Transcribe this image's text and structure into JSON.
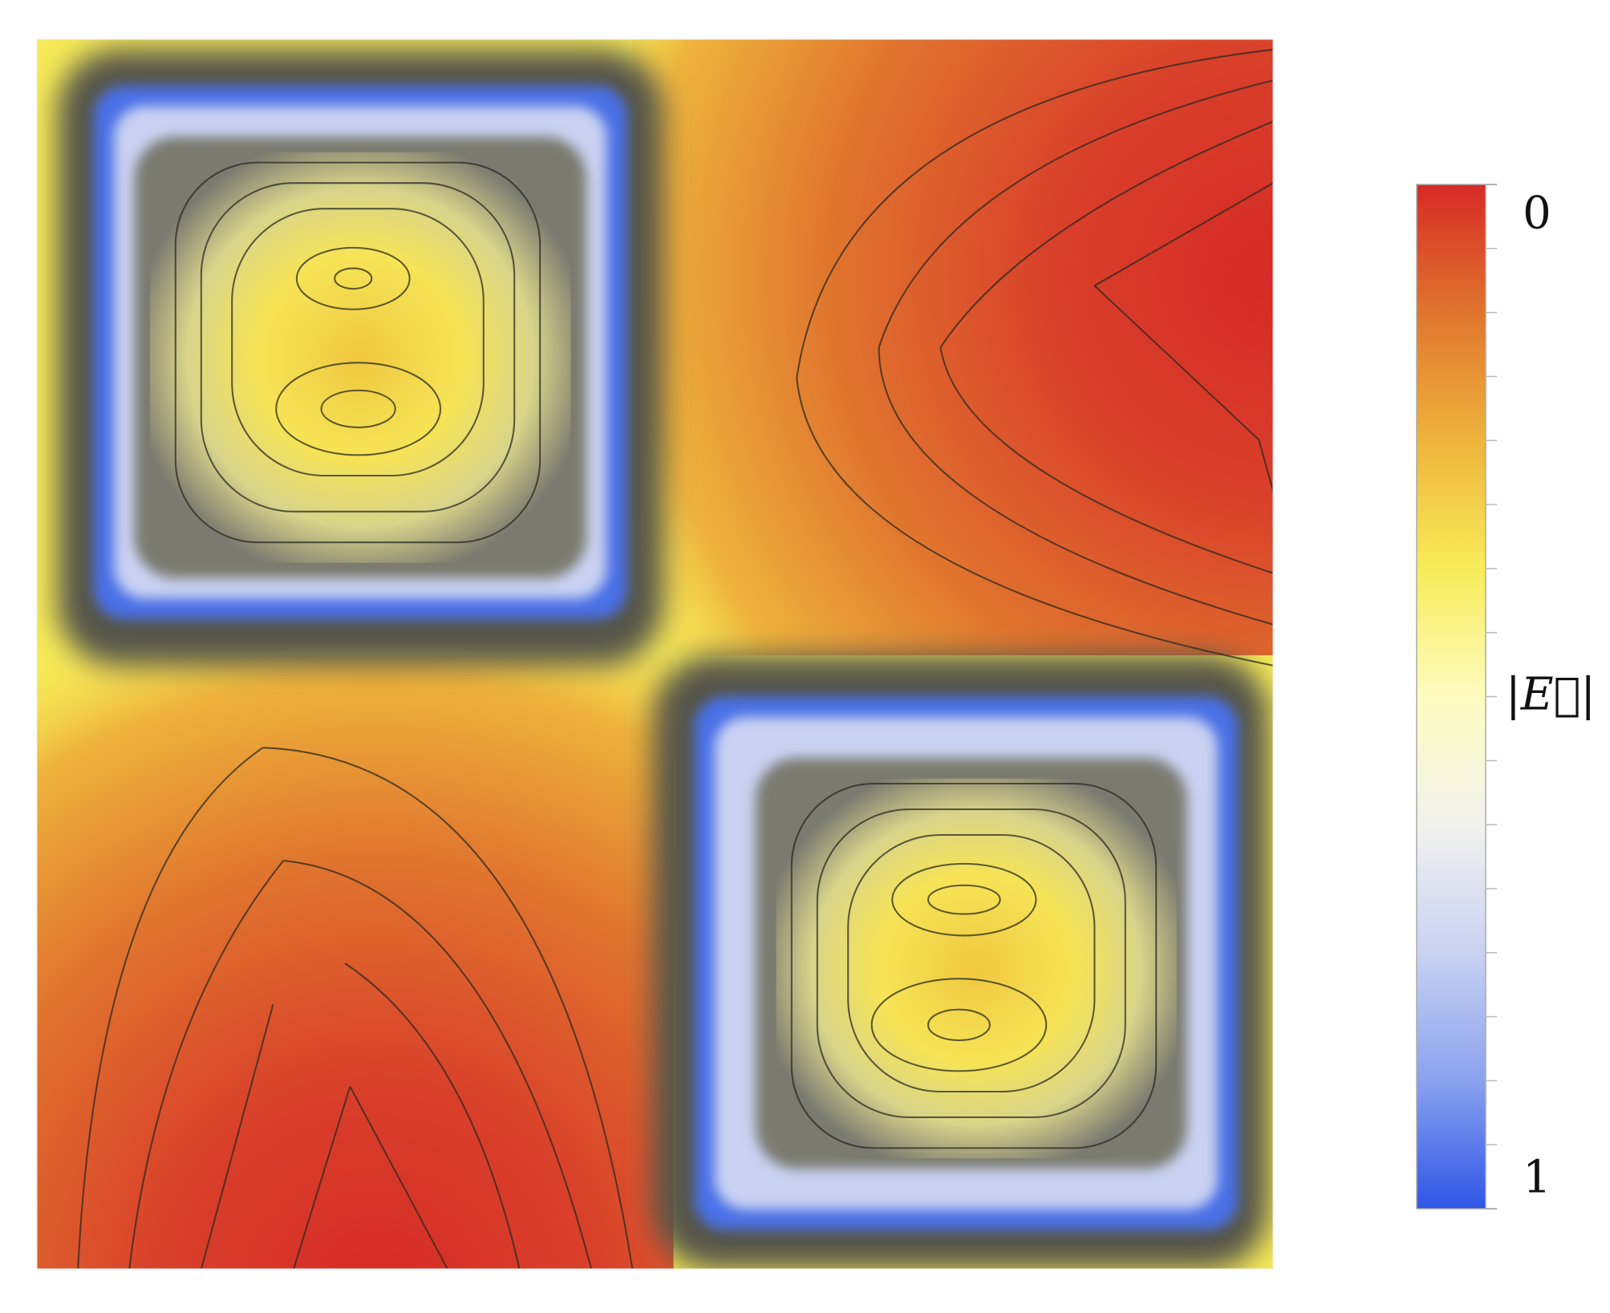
{
  "chart_data": {
    "type": "contour",
    "colorbar": {
      "label": "|E⃗|",
      "clim": [
        0,
        1
      ],
      "ticks": [
        0,
        1
      ],
      "reversed": true,
      "colormap": [
        "#d62a26",
        "#e0752e",
        "#eeb43c",
        "#f8ec5a",
        "#fdfcc0",
        "#f2f2ee",
        "#c9d2f2",
        "#8aa2ee",
        "#2f55e6"
      ]
    }
  }
}
